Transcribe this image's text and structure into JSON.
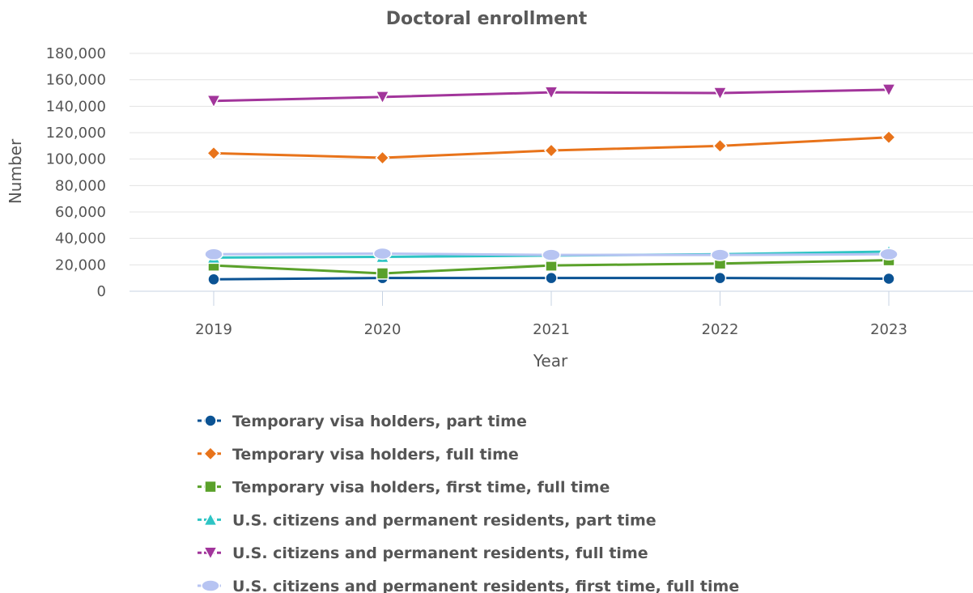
{
  "chart_data": {
    "type": "line",
    "title": "Doctoral enrollment",
    "xlabel": "Year",
    "ylabel": "Number",
    "x": [
      "2019",
      "2020",
      "2021",
      "2022",
      "2023"
    ],
    "ylim": [
      0,
      180000
    ],
    "yticks": [
      "0",
      "20,000",
      "40,000",
      "60,000",
      "80,000",
      "100,000",
      "120,000",
      "140,000",
      "160,000",
      "180,000"
    ],
    "grid": true,
    "legend_position": "bottom",
    "series": [
      {
        "name": "Temporary visa holders, part time",
        "values": [
          9000,
          10000,
          10000,
          10000,
          9500
        ],
        "color": "#0b5394",
        "marker": "circle"
      },
      {
        "name": "Temporary visa holders, full time",
        "values": [
          104500,
          101000,
          106500,
          110000,
          116500
        ],
        "color": "#e8731a",
        "marker": "diamond"
      },
      {
        "name": "Temporary visa holders, first time, full time",
        "values": [
          19500,
          13500,
          19500,
          21000,
          23500
        ],
        "color": "#5aa12a",
        "marker": "square"
      },
      {
        "name": "U.S. citizens and permanent residents, part time",
        "values": [
          25500,
          26000,
          27000,
          28000,
          30000
        ],
        "color": "#2ec4c4",
        "marker": "triangle-up"
      },
      {
        "name": "U.S. citizens and permanent residents, full time",
        "values": [
          144000,
          147000,
          150500,
          150000,
          152500
        ],
        "color": "#a2359b",
        "marker": "triangle-down"
      },
      {
        "name": "U.S. citizens and permanent residents, first time, full time",
        "values": [
          28000,
          28500,
          27500,
          27500,
          28000
        ],
        "color": "#b7c4f2",
        "marker": "ellipse"
      }
    ]
  }
}
